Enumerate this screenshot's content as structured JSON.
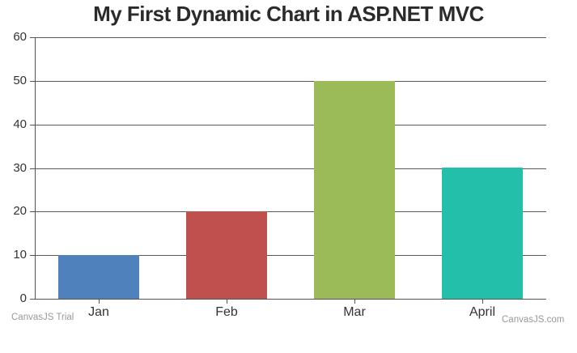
{
  "chart_data": {
    "type": "bar",
    "title": "My First Dynamic Chart in ASP.NET MVC",
    "categories": [
      "Jan",
      "Feb",
      "Mar",
      "April"
    ],
    "values": [
      10,
      20,
      50,
      30
    ],
    "xlabel": "",
    "ylabel": "",
    "ylim": [
      0,
      60
    ],
    "ytick_interval": 10,
    "ytick_labels": [
      "0",
      "10",
      "20",
      "30",
      "40",
      "50",
      "60"
    ],
    "bar_colors": [
      "#4F81BC",
      "#C0504E",
      "#9BBB58",
      "#23BFAA"
    ],
    "grid": true,
    "legend": "none"
  },
  "colors": {
    "background": "#FFFFFF",
    "grid": "#5A5A5A",
    "axis": "#555555",
    "title": "#2B2B2B",
    "axis_label": "#333333",
    "credit": "#999999"
  },
  "credits": {
    "trial_label": "CanvasJS Trial",
    "brand_label": "CanvasJS.com"
  }
}
